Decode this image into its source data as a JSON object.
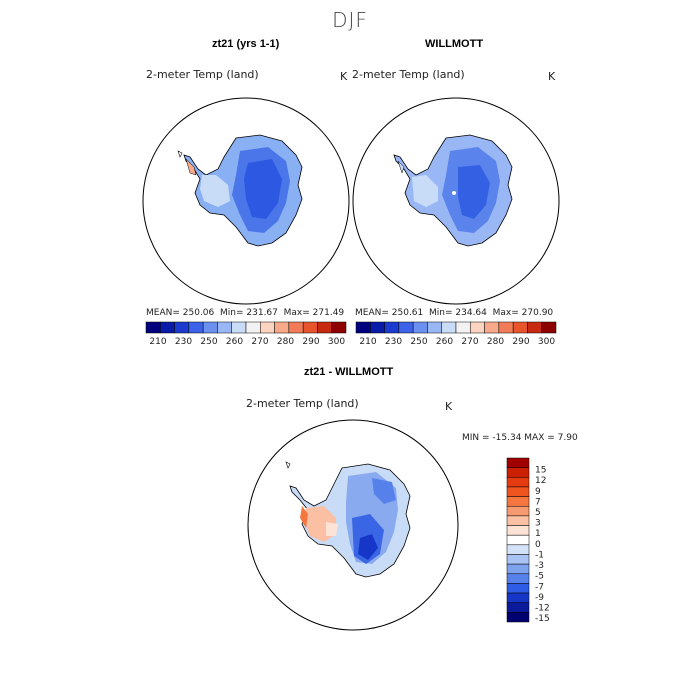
{
  "figure": {
    "season": "DJF"
  },
  "panels": [
    {
      "title": "zt21 (yrs 1-1)",
      "variable": "2-meter Temp (land)",
      "units": "K",
      "stats": {
        "mean_label": "MEAN=",
        "mean": "250.06",
        "min_label": "Min=",
        "min": "231.67",
        "max_label": "Max=",
        "max": "271.49"
      }
    },
    {
      "title": "WILLMOTT",
      "variable": "2-meter Temp (land)",
      "units": "K",
      "stats": {
        "mean_label": "MEAN=",
        "mean": "250.61",
        "min_label": "Min=",
        "min": "234.64",
        "max_label": "Max=",
        "max": "270.90"
      }
    },
    {
      "title": "zt21 - WILLMOTT",
      "variable": "2-meter Temp (land)",
      "units": "K",
      "stats_text": "MIN = -15.34  MAX =    7.90"
    }
  ],
  "colorbar_abs": {
    "labels": [
      "210",
      "230",
      "250",
      "260",
      "270",
      "280",
      "290",
      "300"
    ],
    "colors": [
      "#00007f",
      "#0a1aa8",
      "#1a3ad0",
      "#3b62e8",
      "#6b90f0",
      "#9ab7f5",
      "#c9dcf7",
      "#f2f2f2",
      "#fcd4c0",
      "#f7a989",
      "#f27c58",
      "#e8542c",
      "#c72a10",
      "#8c0000"
    ]
  },
  "colorbar_diff": {
    "labels": [
      "15",
      "12",
      "9",
      "7",
      "5",
      "3",
      "1",
      "0",
      "-1",
      "-3",
      "-5",
      "-7",
      "-9",
      "-12",
      "-15"
    ],
    "colors": [
      "#a00000",
      "#cc1f00",
      "#e63a10",
      "#f0551f",
      "#f5773f",
      "#f89a70",
      "#fbc0a4",
      "#fde3d6",
      "#ffffff",
      "#d3e2f8",
      "#a9c4f3",
      "#7ea2ee",
      "#5680ea",
      "#2f5ce6",
      "#1636c8",
      "#0a1a9a",
      "#000070"
    ]
  }
}
